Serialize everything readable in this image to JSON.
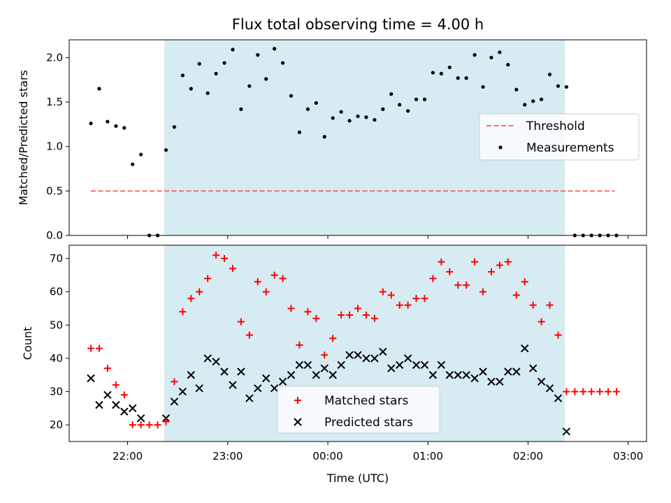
{
  "chart_data": [
    {
      "type": "scatter",
      "title": "Flux total observing time = 4.00 h",
      "xlabel": "",
      "ylabel": "Matched/Predicted stars",
      "xlim_minutes_from_midnight": [
        -155,
        191
      ],
      "ylim": [
        0,
        2.2
      ],
      "yticks": [
        "0.0",
        "0.5",
        "1.0",
        "1.5",
        "2.0"
      ],
      "ytick_values": [
        0,
        0.5,
        1.0,
        1.5,
        2.0
      ],
      "shaded_interval_minutes": [
        -98,
        142
      ],
      "shade_color": "#add8e6",
      "threshold": {
        "name": "Threshold",
        "value": 0.5,
        "x_range": [
          -142,
          172
        ],
        "color": "#f07070"
      },
      "legend": [
        "Threshold",
        "Measurements"
      ],
      "legend_position": "center-right",
      "series": [
        {
          "name": "Measurements",
          "color": "#000000",
          "x": [
            -142,
            -137,
            -132,
            -127,
            -122,
            -117,
            -112,
            -107,
            -102,
            -97,
            -92,
            -87,
            -82,
            -77,
            -72,
            -67,
            -62,
            -57,
            -52,
            -47,
            -42,
            -37,
            -32,
            -27,
            -22,
            -17,
            -12,
            -7,
            -2,
            3,
            8,
            13,
            18,
            23,
            28,
            33,
            38,
            43,
            48,
            53,
            58,
            63,
            68,
            73,
            78,
            83,
            88,
            93,
            98,
            103,
            108,
            113,
            118,
            123,
            128,
            133,
            138,
            143,
            148,
            153,
            158,
            163,
            168,
            173
          ],
          "y": [
            1.26,
            1.65,
            1.28,
            1.23,
            1.21,
            0.8,
            0.91,
            0,
            0,
            0.96,
            1.22,
            1.8,
            1.65,
            1.93,
            1.6,
            1.82,
            1.94,
            2.09,
            1.42,
            1.68,
            2.03,
            1.76,
            2.1,
            1.94,
            1.57,
            1.16,
            1.42,
            1.49,
            1.11,
            1.32,
            1.39,
            1.29,
            1.34,
            1.33,
            1.3,
            1.42,
            1.59,
            1.47,
            1.4,
            1.53,
            1.53,
            1.83,
            1.82,
            1.89,
            1.77,
            1.77,
            2.03,
            1.67,
            2.0,
            2.06,
            1.92,
            1.64,
            1.47,
            1.51,
            1.53,
            1.81,
            1.68,
            1.67,
            0,
            0,
            0,
            0,
            0,
            0
          ]
        }
      ]
    },
    {
      "type": "scatter",
      "title": "",
      "xlabel": "Time (UTC)",
      "ylabel": "Count",
      "xlim_minutes_from_midnight": [
        -155,
        191
      ],
      "ylim": [
        15,
        74
      ],
      "yticks": [
        "20",
        "30",
        "40",
        "50",
        "60",
        "70"
      ],
      "ytick_values": [
        20,
        30,
        40,
        50,
        60,
        70
      ],
      "xtick_values": [
        -120,
        -60,
        0,
        60,
        120,
        180
      ],
      "xticks": [
        "22:00",
        "23:00",
        "00:00",
        "01:00",
        "02:00",
        "03:00"
      ],
      "shaded_interval_minutes": [
        -98,
        142
      ],
      "legend": [
        "Matched stars",
        "Predicted stars"
      ],
      "legend_position": "lower-center",
      "series": [
        {
          "name": "Matched stars",
          "marker": "+",
          "color": "#ff0000",
          "x": [
            -142,
            -137,
            -132,
            -127,
            -122,
            -117,
            -112,
            -107,
            -102,
            -97,
            -92,
            -87,
            -82,
            -77,
            -72,
            -67,
            -62,
            -57,
            -52,
            -47,
            -42,
            -37,
            -32,
            -27,
            -22,
            -17,
            -12,
            -7,
            -2,
            3,
            8,
            13,
            18,
            23,
            28,
            33,
            38,
            43,
            48,
            53,
            58,
            63,
            68,
            73,
            78,
            83,
            88,
            93,
            98,
            103,
            108,
            113,
            118,
            123,
            128,
            133,
            138,
            143,
            148,
            153,
            158,
            163,
            168,
            173
          ],
          "y": [
            43,
            43,
            37,
            32,
            29,
            20,
            20,
            20,
            20,
            21,
            33,
            54,
            58,
            60,
            64,
            71,
            70,
            67,
            51,
            47,
            63,
            60,
            65,
            64,
            55,
            44,
            54,
            52,
            41,
            46,
            53,
            53,
            55,
            53,
            52,
            60,
            59,
            56,
            56,
            58,
            58,
            64,
            69,
            66,
            62,
            62,
            69,
            60,
            66,
            68,
            69,
            59,
            63,
            56,
            51,
            56,
            47,
            30,
            30,
            30,
            30,
            30,
            30,
            30
          ]
        },
        {
          "name": "Predicted stars",
          "marker": "x",
          "color": "#000000",
          "x": [
            -142,
            -137,
            -132,
            -127,
            -122,
            -117,
            -112,
            -97,
            -92,
            -87,
            -82,
            -77,
            -72,
            -67,
            -62,
            -57,
            -52,
            -47,
            -42,
            -37,
            -32,
            -27,
            -22,
            -17,
            -12,
            -7,
            -2,
            3,
            8,
            13,
            18,
            23,
            28,
            33,
            38,
            43,
            48,
            53,
            58,
            63,
            68,
            73,
            78,
            83,
            88,
            93,
            98,
            103,
            108,
            113,
            118,
            123,
            128,
            133,
            138,
            143
          ],
          "y": [
            34,
            26,
            29,
            26,
            24,
            25,
            22,
            22,
            27,
            30,
            35,
            31,
            40,
            39,
            36,
            32,
            36,
            28,
            31,
            34,
            31,
            33,
            35,
            38,
            38,
            35,
            37,
            35,
            38,
            41,
            41,
            40,
            40,
            42,
            37,
            38,
            40,
            38,
            38,
            35,
            38,
            35,
            35,
            35,
            34,
            36,
            33,
            33,
            36,
            36,
            43,
            37,
            33,
            31,
            28,
            18
          ]
        }
      ]
    }
  ]
}
